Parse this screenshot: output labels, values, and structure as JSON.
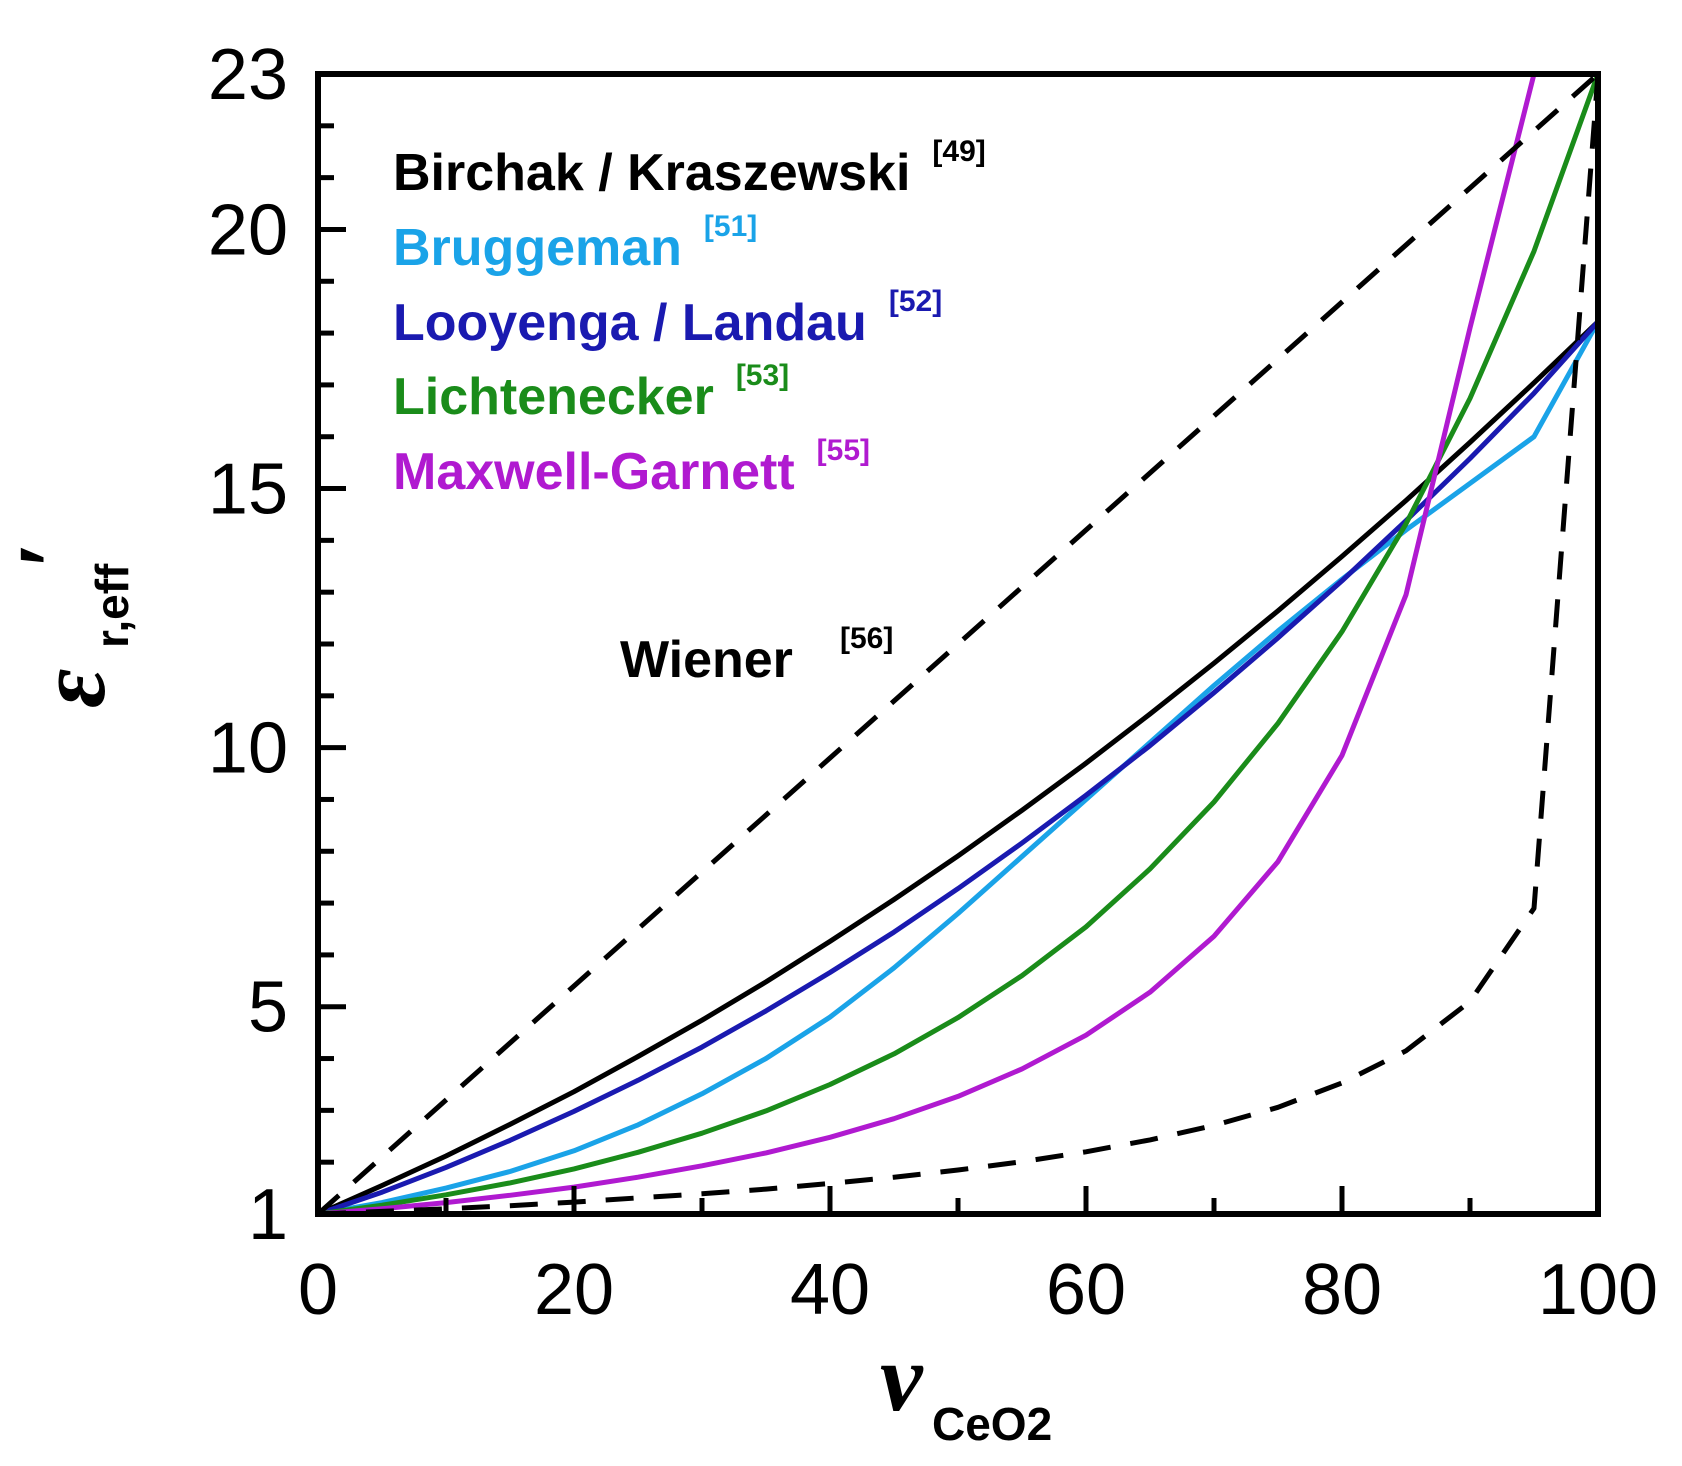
{
  "chart_data": {
    "type": "line",
    "xlabel": {
      "main": "ν",
      "sub": "CeO2"
    },
    "ylabel": {
      "main": "ε",
      "sub": "r,eff",
      "prime": "′"
    },
    "xlim": [
      0,
      100
    ],
    "ylim": [
      1,
      23
    ],
    "xticks": [
      0,
      20,
      40,
      60,
      80,
      100
    ],
    "yticks": [
      1,
      5,
      10,
      15,
      20,
      23
    ],
    "x": [
      0,
      5,
      10,
      15,
      20,
      25,
      30,
      35,
      40,
      45,
      50,
      55,
      60,
      65,
      70,
      75,
      80,
      85,
      90,
      95,
      100
    ],
    "series": [
      {
        "name": "Birchak / Kraszewski",
        "ref": "[49]",
        "color": "#000000",
        "dash": false,
        "values": [
          1.0,
          1.55,
          2.12,
          2.73,
          3.36,
          4.04,
          4.74,
          5.48,
          6.26,
          7.07,
          7.91,
          8.79,
          9.7,
          10.65,
          11.63,
          12.64,
          13.69,
          14.77,
          15.89,
          17.04,
          18.22
        ]
      },
      {
        "name": "Bruggeman",
        "ref": "[51]",
        "color": "#1aa3e8",
        "dash": false,
        "values": [
          1.0,
          1.22,
          1.5,
          1.82,
          2.22,
          2.72,
          3.32,
          4.0,
          4.8,
          5.75,
          6.8,
          7.9,
          9.0,
          10.1,
          11.2,
          12.25,
          13.25,
          14.2,
          15.1,
          16.0,
          18.22
        ]
      },
      {
        "name": "Looyenga / Landau",
        "ref": "[52]",
        "color": "#1a1ab0",
        "dash": false,
        "values": [
          1.0,
          1.42,
          1.9,
          2.42,
          2.98,
          3.58,
          4.22,
          4.92,
          5.66,
          6.44,
          7.28,
          8.16,
          9.08,
          10.04,
          11.06,
          12.12,
          13.22,
          14.38,
          15.58,
          16.84,
          18.22
        ]
      },
      {
        "name": "Lichtenecker",
        "ref": "[53]",
        "color": "#1a8c1a",
        "dash": false,
        "values": [
          1.0,
          1.17,
          1.37,
          1.6,
          1.87,
          2.19,
          2.56,
          2.99,
          3.5,
          4.09,
          4.79,
          5.6,
          6.54,
          7.66,
          8.95,
          10.47,
          12.24,
          14.32,
          16.74,
          19.58,
          23.0
        ]
      },
      {
        "name": "Maxwell-Garnett",
        "ref": "[55]",
        "color": "#b01ad0",
        "dash": false,
        "values": [
          1.0,
          1.1,
          1.22,
          1.36,
          1.52,
          1.71,
          1.93,
          2.18,
          2.48,
          2.84,
          3.27,
          3.8,
          4.45,
          5.28,
          6.36,
          7.8,
          9.85,
          12.95,
          18.1,
          23.0,
          23.0
        ]
      },
      {
        "name": "Wiener",
        "ref": "[56]",
        "color": "#000000",
        "dash": true,
        "branch": "upper",
        "values": [
          1.0,
          2.1,
          3.2,
          4.3,
          5.4,
          6.5,
          7.6,
          8.7,
          9.8,
          10.9,
          12.0,
          13.1,
          14.2,
          15.3,
          16.4,
          17.5,
          18.6,
          19.7,
          20.8,
          21.9,
          23.0
        ]
      },
      {
        "name": "Wiener",
        "ref": "[56]",
        "color": "#000000",
        "dash": true,
        "branch": "lower",
        "values": [
          1.0,
          1.05,
          1.1,
          1.16,
          1.23,
          1.31,
          1.39,
          1.48,
          1.59,
          1.71,
          1.85,
          2.01,
          2.2,
          2.43,
          2.71,
          3.06,
          3.53,
          4.15,
          5.1,
          6.9,
          23.0
        ]
      }
    ]
  },
  "legend": [
    {
      "label": "Birchak / Kraszewski",
      "ref": "[49]",
      "color": "#000000"
    },
    {
      "label": "Bruggeman",
      "ref": "[51]",
      "color": "#1aa3e8"
    },
    {
      "label": "Looyenga / Landau",
      "ref": "[52]",
      "color": "#1a1ab0"
    },
    {
      "label": "Lichtenecker",
      "ref": "[53]",
      "color": "#1a8c1a"
    },
    {
      "label": "Maxwell-Garnett",
      "ref": "[55]",
      "color": "#b01ad0"
    }
  ],
  "annotation": {
    "label": "Wiener",
    "ref": "[56]"
  }
}
